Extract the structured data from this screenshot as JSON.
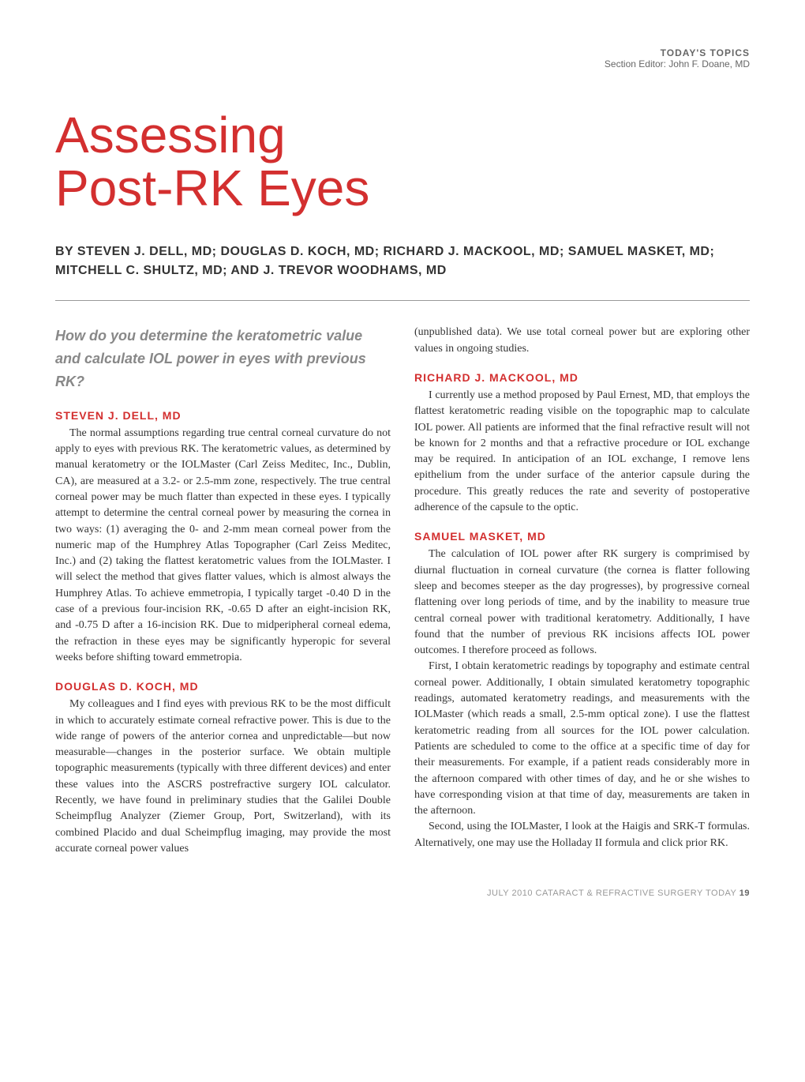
{
  "header": {
    "topic": "TODAY'S TOPICS",
    "editor": "Section Editor: John F. Doane, MD"
  },
  "title_line1": "Assessing",
  "title_line2": "Post-RK Eyes",
  "byline": "BY STEVEN J. DELL, MD; DOUGLAS D. KOCH, MD; RICHARD J. MACKOOL, MD; SAMUEL MASKET, MD; MITCHELL C. SHULTZ, MD; AND J. TREVOR WOODHAMS, MD",
  "question": "How do you determine the keratometric value and calculate IOL power in eyes with previous RK?",
  "authors": {
    "dell": {
      "name": "STEVEN J. DELL, MD",
      "text": "The normal assumptions regarding true central corneal curvature do not apply to eyes with previous RK. The keratometric values, as determined by manual keratometry or the IOLMaster (Carl Zeiss Meditec, Inc., Dublin, CA), are measured at a 3.2- or 2.5-mm zone, respectively. The true central corneal power may be much flatter than expected in these eyes. I typically attempt to determine the central corneal power by measuring the cornea in two ways: (1) averaging the 0- and 2-mm mean corneal power from the numeric map of the Humphrey Atlas Topographer (Carl Zeiss Meditec, Inc.) and (2) taking the flattest keratometric values from the IOLMaster. I will select the method that gives flatter values, which is almost always the Humphrey Atlas. To achieve emmetropia, I typically target -0.40 D in the case of a previous four-incision RK, -0.65 D after an eight-incision RK, and -0.75 D after a 16-incision RK. Due to midperipheral corneal edema, the refraction in these eyes may be significantly hyperopic for several weeks before shifting toward emmetropia."
    },
    "koch": {
      "name": "DOUGLAS D. KOCH, MD",
      "text": "My colleagues and I find eyes with previous RK to be the most difficult in which to accurately estimate corneal refractive power. This is due to the wide range of powers of the anterior cornea and unpredictable—but now measurable—changes in the posterior surface. We obtain multiple topographic measurements (typically with three different devices) and enter these values into the ASCRS postrefractive surgery IOL calculator. Recently, we have found in preliminary studies that the Galilei Double Scheimpflug Analyzer (Ziemer Group, Port, Switzerland), with its combined Placido and dual Scheimpflug imaging, may provide the most accurate corneal power values",
      "text_cont": "(unpublished data). We use total corneal power but are exploring other values in ongoing studies."
    },
    "mackool": {
      "name": "RICHARD J. MACKOOL, MD",
      "text": "I currently use a method proposed by Paul Ernest, MD, that employs the flattest keratometric reading visible on the topographic map to calculate IOL power. All patients are informed that the final refractive result will not be known for 2 months and that a refractive procedure or IOL exchange may be required. In anticipation of an IOL exchange, I remove lens epithelium from the under surface of the anterior capsule during the procedure. This greatly reduces the rate and severity of postoperative adherence of the capsule to the optic."
    },
    "masket": {
      "name": "SAMUEL MASKET, MD",
      "text1": "The calculation of IOL power after RK surgery is comprimised by diurnal fluctuation in corneal curvature (the cornea is flatter following sleep and becomes steeper as the day progresses), by progressive corneal flattening over long periods of time, and by the inability to measure true central corneal power with traditional keratometry. Additionally, I have found that the number of previous RK incisions affects IOL power outcomes. I therefore proceed as follows.",
      "text2": "First, I obtain keratometric readings by topography and estimate central corneal power. Additionally, I obtain simulated keratometry topographic readings, automated keratometry readings, and measurements with the IOLMaster (which reads a small, 2.5-mm optical zone). I use the flattest keratometric reading from all sources for the IOL power calculation. Patients are scheduled to come to the office at a specific time of day for their measurements. For example, if a patient reads considerably more in the afternoon compared with other times of day, and he or she wishes to have corresponding vision at that time of day, measurements are taken in the afternoon.",
      "text3": "Second, using the IOLMaster, I look at the Haigis and SRK-T formulas. Alternatively, one may use the Holladay II formula and click prior RK."
    }
  },
  "footer": {
    "date": "JULY 2010",
    "publication": "CATARACT & REFRACTIVE SURGERY TODAY",
    "page": "19"
  },
  "colors": {
    "accent_red": "#d32f2f",
    "text_gray": "#333333",
    "header_gray": "#666666",
    "question_gray": "#888888",
    "footer_gray": "#999999",
    "divider_gray": "#999999",
    "background": "#ffffff"
  }
}
